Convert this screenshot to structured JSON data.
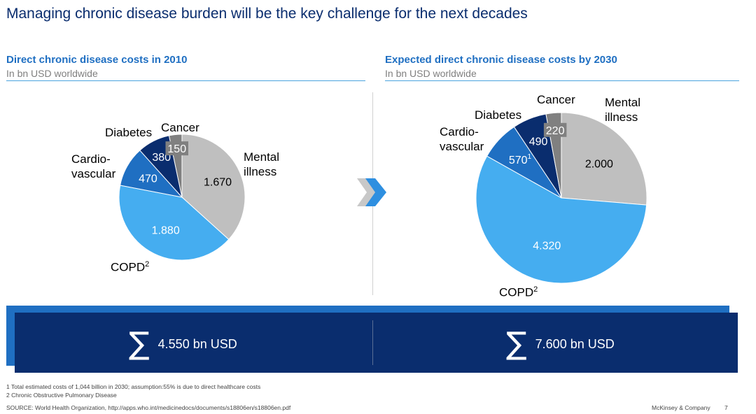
{
  "title": "Managing chronic disease burden will be the key challenge for the next decades",
  "chart_data": [
    {
      "type": "pie",
      "title": "Direct chronic disease costs in 2010",
      "subtitle": "In bn USD worldwide",
      "slices": [
        {
          "name": "Mental illness",
          "value": 1670,
          "value_label": "1.670",
          "color": "#bfbfbf"
        },
        {
          "name": "COPD",
          "name_sup": "2",
          "value": 1880,
          "value_label": "1.880",
          "color": "#45adf0"
        },
        {
          "name": "Cardio-vascular",
          "value": 470,
          "value_label": "470",
          "color": "#1f6fc2"
        },
        {
          "name": "Diabetes",
          "value": 380,
          "value_label": "380",
          "color": "#0a2d6e"
        },
        {
          "name": "Cancer",
          "value": 150,
          "value_label": "150",
          "color": "#808080"
        }
      ],
      "total_label": "4.550 bn USD"
    },
    {
      "type": "pie",
      "title": "Expected direct chronic disease costs by 2030",
      "subtitle": "In bn USD worldwide",
      "slices": [
        {
          "name": "Mental illness",
          "value": 2000,
          "value_label": "2.000",
          "color": "#bfbfbf"
        },
        {
          "name": "COPD",
          "name_sup": "2",
          "value": 4320,
          "value_label": "4.320",
          "color": "#45adf0"
        },
        {
          "name": "Cardio-vascular",
          "value": 570,
          "value_label": "570",
          "value_sup": "1",
          "color": "#1f6fc2"
        },
        {
          "name": "Diabetes",
          "value": 490,
          "value_label": "490",
          "color": "#0a2d6e"
        },
        {
          "name": "Cancer",
          "value": 220,
          "value_label": "220",
          "color": "#808080"
        }
      ],
      "total_label": "7.600 bn USD"
    }
  ],
  "labels_2010": {
    "mental_1": "Mental",
    "mental_2": "illness",
    "copd": "COPD",
    "copd_sup": "2",
    "cardio_1": "Cardio-",
    "cardio_2": "vascular",
    "diabetes": "Diabetes",
    "cancer": "Cancer"
  },
  "labels_2030": {
    "mental_1": "Mental",
    "mental_2": "illness",
    "copd": "COPD",
    "copd_sup": "2",
    "cardio_1": "Cardio-",
    "cardio_2": "vascular",
    "diabetes": "Diabetes",
    "cancer": "Cancer"
  },
  "summary": {
    "sigma": "∑",
    "left": "4.550 bn USD",
    "right": "7.600 bn USD"
  },
  "footnotes": {
    "note1": "1 Total estimated costs of 1,044 billion in 2030; assumption:55% is due to direct healthcare costs",
    "note2": "2 Chronic Obstructive Pulmonary Disease",
    "source": "SOURCE: World Health Organization, http://apps.who.int/medicinedocs/documents/s18806en/s18806en.pdf",
    "brand": "McKinsey & Company",
    "page": "7"
  },
  "colors": {
    "title": "#0a2d6e",
    "heading": "#1f6fc2",
    "band_front": "#0a2d6e",
    "band_back": "#1f6fc2",
    "chevron_front": "#2e8fe0",
    "chevron_back": "#c8c8c8"
  }
}
